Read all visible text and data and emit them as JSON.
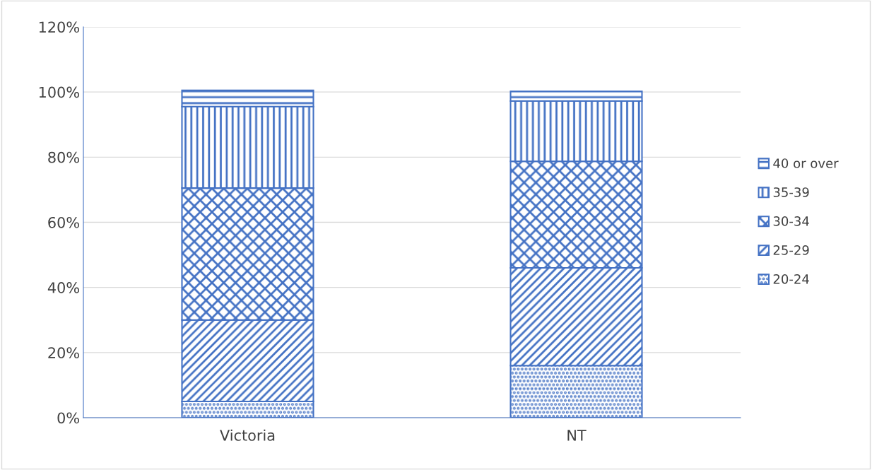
{
  "chart_data": {
    "type": "bar",
    "stacked": true,
    "categories": [
      "Victoria",
      "NT"
    ],
    "series": [
      {
        "name": "20-24",
        "color": "#4472c4",
        "values": [
          5,
          16
        ]
      },
      {
        "name": "25-29",
        "color": "#4472c4",
        "values": [
          25,
          30
        ]
      },
      {
        "name": "30-34",
        "color": "#4472c4",
        "values": [
          40.5,
          32.7
        ]
      },
      {
        "name": "35-39",
        "color": "#4472c4",
        "values": [
          25,
          18.5
        ]
      },
      {
        "name": "40 or over",
        "color": "#4472c4",
        "values": [
          5,
          3
        ]
      }
    ],
    "ylim": [
      0,
      120
    ],
    "yticks": [
      {
        "value": 0,
        "label": "0%"
      },
      {
        "value": 20,
        "label": "20%"
      },
      {
        "value": 40,
        "label": "40%"
      },
      {
        "value": 60,
        "label": "60%"
      },
      {
        "value": 80,
        "label": "80%"
      },
      {
        "value": 100,
        "label": "100%"
      },
      {
        "value": 120,
        "label": "120%"
      }
    ],
    "grid": "y",
    "legend": "right"
  }
}
